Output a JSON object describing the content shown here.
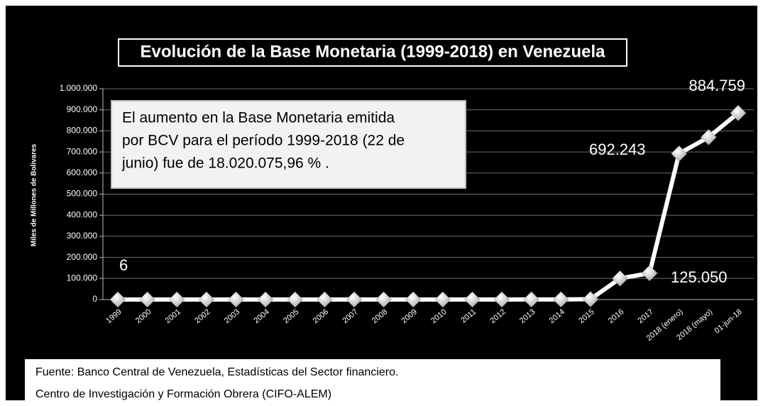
{
  "chart_data": {
    "type": "line",
    "title": "Evolución de la Base Monetaria (1999-2018) en Venezuela",
    "y_label": "Miles de Millones de Bolivares",
    "annotation": [
      "El aumento en la Base Monetaria emitida",
      "por BCV para el período 1999-2018 (22 de",
      "junio) fue de  18.020.075,96 % ."
    ],
    "source": [
      "Fuente: Banco Central  de Venezuela, Estadísticas del Sector financiero.",
      "Centro de Investigación y Formación Obrera (CIFO-ALEM)"
    ],
    "categories": [
      "1999",
      "2000",
      "2001",
      "2002",
      "2003",
      "2004",
      "2005",
      "2006",
      "2007",
      "2008",
      "2009",
      "2010",
      "2011",
      "2012",
      "2013",
      "2014",
      "2015",
      "2016",
      "2017",
      "2018 (enero)",
      "2018 (mayo)",
      "01-jun-18"
    ],
    "series": [
      {
        "name": "Base Monetaria",
        "color": "#ffffff",
        "values": [
          6,
          7,
          8,
          10,
          13,
          18,
          24,
          32,
          44,
          52,
          60,
          75,
          100,
          140,
          230,
          420,
          1500,
          100000,
          125050,
          692243,
          770000,
          884759
        ],
        "value_labels": [
          "6",
          null,
          null,
          null,
          null,
          null,
          null,
          null,
          null,
          null,
          null,
          null,
          null,
          null,
          null,
          null,
          null,
          null,
          "125.050",
          "692.243",
          null,
          "884.759"
        ]
      }
    ],
    "ylim": [
      0,
      1000000
    ],
    "yticks": [
      0,
      {
        "value": 100000,
        "label": "100.000"
      },
      {
        "value": 200000,
        "label": "200.000"
      },
      {
        "value": 300000,
        "label": "300.000"
      },
      {
        "value": 400000,
        "label": "400.000"
      },
      {
        "value": 500000,
        "label": "500.000"
      },
      {
        "value": 600000,
        "label": "600.000"
      },
      {
        "value": 700000,
        "label": "700.000"
      },
      {
        "value": 800000,
        "label": "800.000"
      },
      {
        "value": 900000,
        "label": "900.000"
      },
      {
        "value": 1000000,
        "label": "1.000.000"
      }
    ],
    "grid": true
  }
}
